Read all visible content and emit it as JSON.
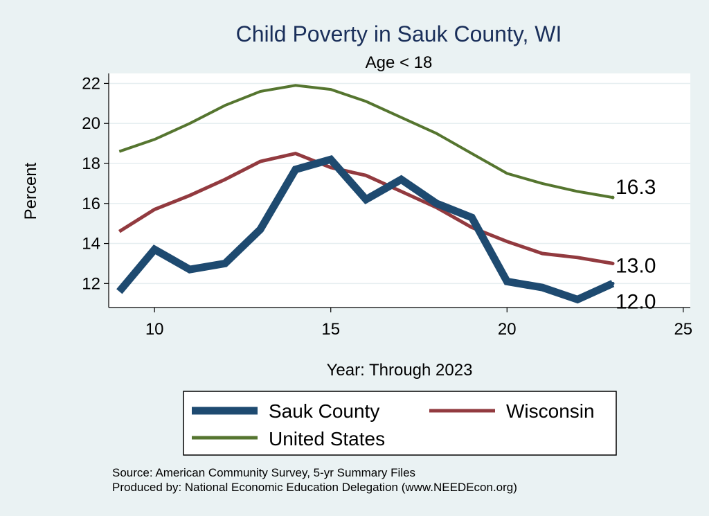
{
  "chart_data": {
    "type": "line",
    "title": "Child Poverty in Sauk County, WI",
    "subtitle": "Age < 18",
    "xlabel": "Year: Through 2023",
    "ylabel": "Percent",
    "xlim": [
      8.7,
      25.2
    ],
    "ylim": [
      10.8,
      22.5
    ],
    "x_ticks": [
      10,
      15,
      20,
      25
    ],
    "y_ticks": [
      12,
      14,
      16,
      18,
      20,
      22
    ],
    "x": [
      9,
      10,
      11,
      12,
      13,
      14,
      15,
      16,
      17,
      18,
      19,
      20,
      21,
      22,
      23
    ],
    "series": [
      {
        "name": "Sauk County",
        "color": "#1e4a70",
        "end_label": "12.0",
        "values": [
          11.6,
          13.7,
          12.7,
          13.0,
          14.7,
          17.7,
          18.2,
          16.2,
          17.2,
          16.0,
          15.3,
          12.1,
          11.8,
          11.2,
          12.0
        ]
      },
      {
        "name": "Wisconsin",
        "color": "#923a3f",
        "end_label": "13.0",
        "values": [
          14.6,
          15.7,
          16.4,
          17.2,
          18.1,
          18.5,
          17.8,
          17.4,
          16.6,
          15.8,
          14.8,
          14.1,
          13.5,
          13.3,
          13.0
        ]
      },
      {
        "name": "United States",
        "color": "#55752f",
        "end_label": "16.3",
        "values": [
          18.6,
          19.2,
          20.0,
          20.9,
          21.6,
          21.9,
          21.7,
          21.1,
          20.3,
          19.5,
          18.5,
          17.5,
          17.0,
          16.6,
          16.3
        ]
      }
    ],
    "legend": {
      "position": "bottom",
      "entries": [
        "Sauk County",
        "Wisconsin",
        "United States"
      ]
    },
    "note_lines": [
      "Source: American Community Survey, 5-yr Summary Files",
      "Produced by: National Economic Education Delegation (www.NEEDEcon.org)"
    ]
  }
}
